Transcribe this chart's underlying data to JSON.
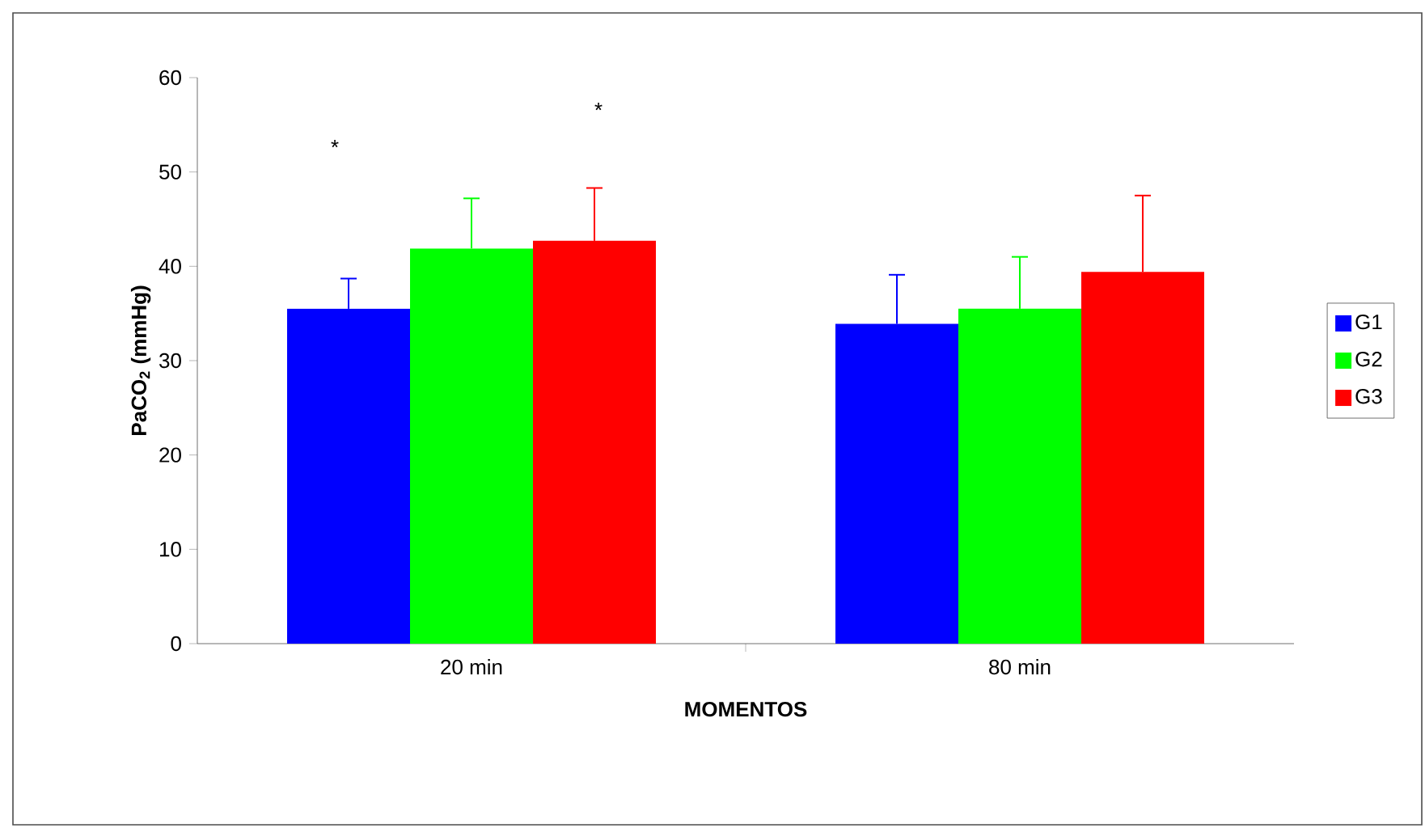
{
  "chart_data": {
    "type": "bar",
    "xlabel": "MOMENTOS",
    "ylabel": "PaCO$_{2}$ (mmHg)",
    "categories": [
      "20 min",
      "80 min"
    ],
    "series": [
      {
        "name": "G1",
        "color": "#0000ff",
        "values": [
          35.5,
          33.9
        ],
        "errors": [
          [
            35.5,
            38.7
          ],
          [
            33.9,
            39.1
          ]
        ]
      },
      {
        "name": "G2",
        "color": "#00ff00",
        "values": [
          41.9,
          35.5
        ],
        "errors": [
          [
            41.9,
            47.2
          ],
          [
            35.5,
            41.0
          ]
        ]
      },
      {
        "name": "G3",
        "color": "#ff0000",
        "values": [
          42.7,
          39.4
        ],
        "errors": [
          [
            42.7,
            48.3
          ],
          [
            39.4,
            47.5
          ]
        ]
      }
    ],
    "ylim": [
      0,
      60
    ],
    "yticks": [
      0,
      10,
      20,
      30,
      40,
      50,
      60
    ],
    "grid": false,
    "legend": "right",
    "annotations": [
      "*",
      "*"
    ]
  }
}
